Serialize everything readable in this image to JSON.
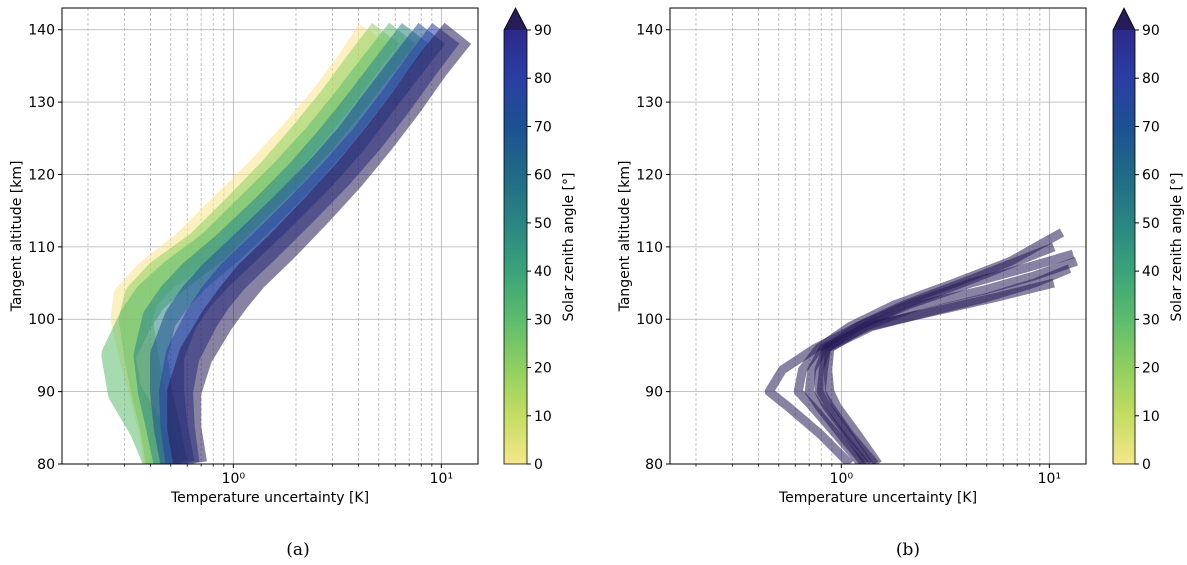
{
  "chart_data": [
    {
      "type": "line",
      "panel_label": "(a)",
      "xlabel": "Temperature uncertainty [K]",
      "ylabel": "Tangent altitude [km]",
      "xscale": "log",
      "xlim": [
        0.15,
        15
      ],
      "ylim": [
        80,
        143
      ],
      "xticks": [
        {
          "value": 1,
          "label": "10⁰"
        },
        {
          "value": 10,
          "label": "10¹"
        }
      ],
      "yticks": [
        80,
        90,
        100,
        110,
        120,
        130,
        140
      ],
      "grid": true,
      "colorbar": {
        "label": "Solar zenith angle [°]",
        "colormap": "haline_r",
        "range": [
          0,
          90
        ],
        "ticks": [
          0,
          10,
          20,
          30,
          40,
          50,
          60,
          70,
          80,
          90
        ],
        "extend": "max",
        "colors": [
          "#f5e68a",
          "#c5dd62",
          "#8fcf60",
          "#5cbc6d",
          "#3aa27a",
          "#2a8582",
          "#1f6a86",
          "#1c5191",
          "#2a3ea3",
          "#2c2a8a",
          "#261c58"
        ]
      },
      "series": [
        {
          "sza": 0,
          "altitude": [
            80,
            85,
            90,
            95,
            100,
            103,
            106,
            110,
            115,
            120,
            125,
            130,
            135,
            139.5
          ],
          "uncertainty": [
            0.45,
            0.42,
            0.38,
            0.34,
            0.31,
            0.32,
            0.4,
            0.6,
            0.9,
            1.35,
            1.95,
            2.75,
            3.7,
            4.7
          ]
        },
        {
          "sza": 15,
          "altitude": [
            80,
            85,
            90,
            95,
            100,
            103,
            106,
            110,
            115,
            120,
            125,
            130,
            135,
            139.5
          ],
          "uncertainty": [
            0.46,
            0.43,
            0.39,
            0.36,
            0.34,
            0.36,
            0.45,
            0.7,
            1.05,
            1.55,
            2.2,
            3.05,
            4.1,
            5.4
          ]
        },
        {
          "sza": 30,
          "altitude": [
            80,
            85,
            90,
            95,
            100,
            103,
            106,
            110,
            115,
            120,
            125,
            130,
            135,
            139.5
          ],
          "uncertainty": [
            0.45,
            0.38,
            0.3,
            0.28,
            0.34,
            0.4,
            0.52,
            0.8,
            1.2,
            1.8,
            2.6,
            3.6,
            4.9,
            6.5
          ]
        },
        {
          "sza": 45,
          "altitude": [
            80,
            85,
            90,
            95,
            100,
            103,
            106,
            110,
            115,
            120,
            125,
            130,
            135,
            139.5
          ],
          "uncertainty": [
            0.5,
            0.46,
            0.42,
            0.4,
            0.44,
            0.52,
            0.65,
            0.95,
            1.45,
            2.15,
            3.05,
            4.2,
            5.7,
            7.5
          ]
        },
        {
          "sza": 60,
          "altitude": [
            80,
            85,
            90,
            95,
            100,
            103,
            106,
            110,
            115,
            120,
            125,
            130,
            135,
            139.5
          ],
          "uncertainty": [
            0.54,
            0.5,
            0.48,
            0.48,
            0.56,
            0.66,
            0.82,
            1.15,
            1.75,
            2.6,
            3.7,
            5.0,
            6.8,
            9.0
          ]
        },
        {
          "sza": 75,
          "altitude": [
            80,
            85,
            90,
            95,
            100,
            103,
            106,
            110,
            115,
            120,
            125,
            130,
            135,
            139.5
          ],
          "uncertainty": [
            0.57,
            0.54,
            0.53,
            0.57,
            0.7,
            0.82,
            1.0,
            1.4,
            2.1,
            3.1,
            4.4,
            6.0,
            8.0,
            10.5
          ]
        },
        {
          "sza": 90,
          "altitude": [
            80,
            85,
            90,
            95,
            100,
            103,
            106,
            110,
            115,
            120,
            125,
            130,
            135,
            139.5
          ],
          "uncertainty": [
            0.62,
            0.58,
            0.58,
            0.66,
            0.84,
            1.0,
            1.22,
            1.7,
            2.5,
            3.6,
            5.0,
            6.8,
            9.0,
            12.0
          ]
        }
      ]
    },
    {
      "type": "line",
      "panel_label": "(b)",
      "xlabel": "Temperature uncertainty [K]",
      "ylabel": "Tangent altitude [km]",
      "xscale": "log",
      "xlim": [
        0.15,
        15
      ],
      "ylim": [
        80,
        143
      ],
      "xticks": [
        {
          "value": 1,
          "label": "10⁰"
        },
        {
          "value": 10,
          "label": "10¹"
        }
      ],
      "yticks": [
        80,
        90,
        100,
        110,
        120,
        130,
        140
      ],
      "grid": true,
      "colorbar": {
        "label": "Solar zenith angle [°]",
        "colormap": "haline_r",
        "range": [
          0,
          90
        ],
        "ticks": [
          0,
          10,
          20,
          30,
          40,
          50,
          60,
          70,
          80,
          90
        ],
        "extend": "max",
        "colors": [
          "#f5e68a",
          "#c5dd62",
          "#8fcf60",
          "#5cbc6d",
          "#3aa27a",
          "#2a8582",
          "#1f6a86",
          "#1c5191",
          "#2a3ea3",
          "#2c2a8a",
          "#261c58"
        ]
      },
      "series": [
        {
          "sza": 90,
          "altitude": [
            80,
            84,
            88,
            90,
            93,
            96,
            99,
            102,
            105,
            108,
            110
          ],
          "uncertainty": [
            1.1,
            0.8,
            0.55,
            0.45,
            0.52,
            0.75,
            1.2,
            2.0,
            3.8,
            7.0,
            10.5
          ]
        },
        {
          "sza": 90,
          "altitude": [
            80,
            84,
            88,
            90,
            93,
            96,
            99,
            102,
            105,
            108,
            112
          ],
          "uncertainty": [
            1.25,
            0.95,
            0.72,
            0.62,
            0.65,
            0.78,
            1.1,
            1.8,
            3.5,
            6.5,
            11.5
          ]
        },
        {
          "sza": 90,
          "altitude": [
            80,
            84,
            88,
            90,
            93,
            96,
            99,
            102,
            105,
            107,
            109
          ],
          "uncertainty": [
            1.35,
            1.08,
            0.85,
            0.78,
            0.78,
            0.85,
            1.2,
            2.1,
            4.2,
            7.5,
            13.0
          ]
        },
        {
          "sza": 90,
          "altitude": [
            80,
            84,
            88,
            90,
            93,
            96,
            99,
            102,
            104,
            106,
            108
          ],
          "uncertainty": [
            1.5,
            1.2,
            0.95,
            0.88,
            0.86,
            0.88,
            1.3,
            2.4,
            4.8,
            8.5,
            13.5
          ]
        },
        {
          "sza": 90,
          "altitude": [
            80,
            84,
            88,
            90,
            93,
            96,
            99,
            101,
            103,
            105,
            107
          ],
          "uncertainty": [
            1.45,
            1.1,
            0.88,
            0.8,
            0.82,
            0.85,
            1.4,
            2.6,
            5.0,
            8.5,
            12.5
          ]
        },
        {
          "sza": 90,
          "altitude": [
            80,
            84,
            88,
            90,
            93,
            96,
            99,
            101,
            103,
            105
          ],
          "uncertainty": [
            1.3,
            1.0,
            0.78,
            0.7,
            0.72,
            0.82,
            1.35,
            2.7,
            5.5,
            10.5
          ]
        }
      ]
    }
  ]
}
